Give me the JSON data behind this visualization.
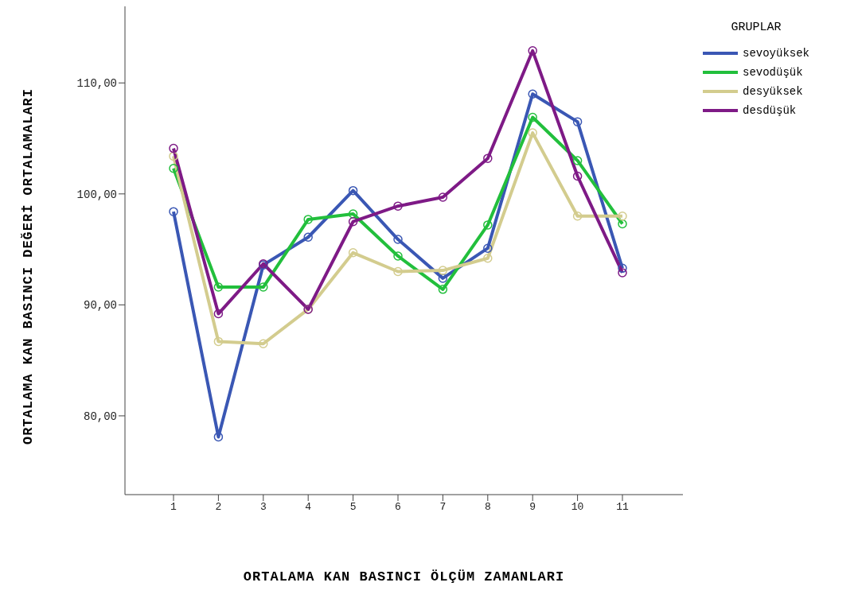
{
  "chart_data": {
    "type": "line",
    "xlabel": "ORTALAMA KAN BASINCI ÖLÇÜM ZAMANLARI",
    "ylabel": "ORTALAMA KAN BASINCI DEĞERİ ORTALAMALARI",
    "legend_title": "GRUPLAR",
    "categories": [
      "1",
      "2",
      "3",
      "4",
      "5",
      "6",
      "7",
      "8",
      "9",
      "10",
      "11"
    ],
    "series": [
      {
        "name": "sevoyüksek",
        "color": "#3a57b4",
        "values": [
          98.4,
          78.1,
          93.6,
          96.1,
          100.3,
          95.9,
          92.4,
          95.1,
          109.0,
          106.5,
          93.3
        ]
      },
      {
        "name": "sevodüşük",
        "color": "#22bf3c",
        "values": [
          102.3,
          91.6,
          91.6,
          97.7,
          98.2,
          94.4,
          91.4,
          97.2,
          106.9,
          103.0,
          97.3
        ]
      },
      {
        "name": "desyüksek",
        "color": "#d3cc8e",
        "values": [
          103.4,
          86.7,
          86.5,
          89.6,
          94.7,
          93.0,
          93.1,
          94.2,
          105.5,
          98.0,
          98.0
        ]
      },
      {
        "name": "desdüşük",
        "color": "#7e1a86",
        "values": [
          104.1,
          89.2,
          93.7,
          89.6,
          97.5,
          98.9,
          99.7,
          103.2,
          112.9,
          101.6,
          92.9
        ]
      }
    ],
    "ylim": [
      72.9,
      116.9
    ],
    "yticks": [
      {
        "value": 80,
        "label": "80,00"
      },
      {
        "value": 90,
        "label": "90,00"
      },
      {
        "value": 100,
        "label": "100,00"
      },
      {
        "value": 110,
        "label": "110,00"
      }
    ],
    "grid": false,
    "legend": "top right",
    "marker": "circle",
    "line_style": "solid"
  }
}
